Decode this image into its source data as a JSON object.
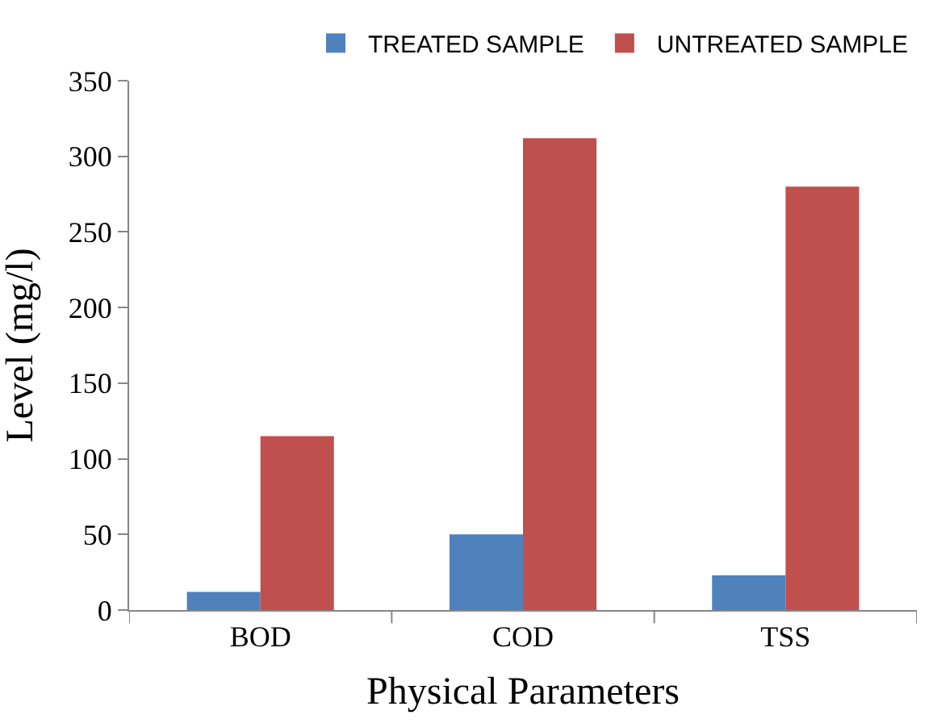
{
  "chart_data": {
    "type": "bar",
    "xlabel": "Physical Parameters",
    "ylabel": "Level (mg/l)",
    "categories": [
      "BOD",
      "COD",
      "TSS"
    ],
    "series": [
      {
        "name": "TREATED SAMPLE",
        "color": "#4f81bd",
        "values": [
          12,
          50,
          23
        ]
      },
      {
        "name": "UNTREATED SAMPLE",
        "color": "#c0504d",
        "values": [
          115,
          312,
          280
        ]
      }
    ],
    "ylim": [
      0,
      350
    ],
    "yticks": [
      0,
      50,
      100,
      150,
      200,
      250,
      300,
      350
    ],
    "legend": "top right"
  }
}
